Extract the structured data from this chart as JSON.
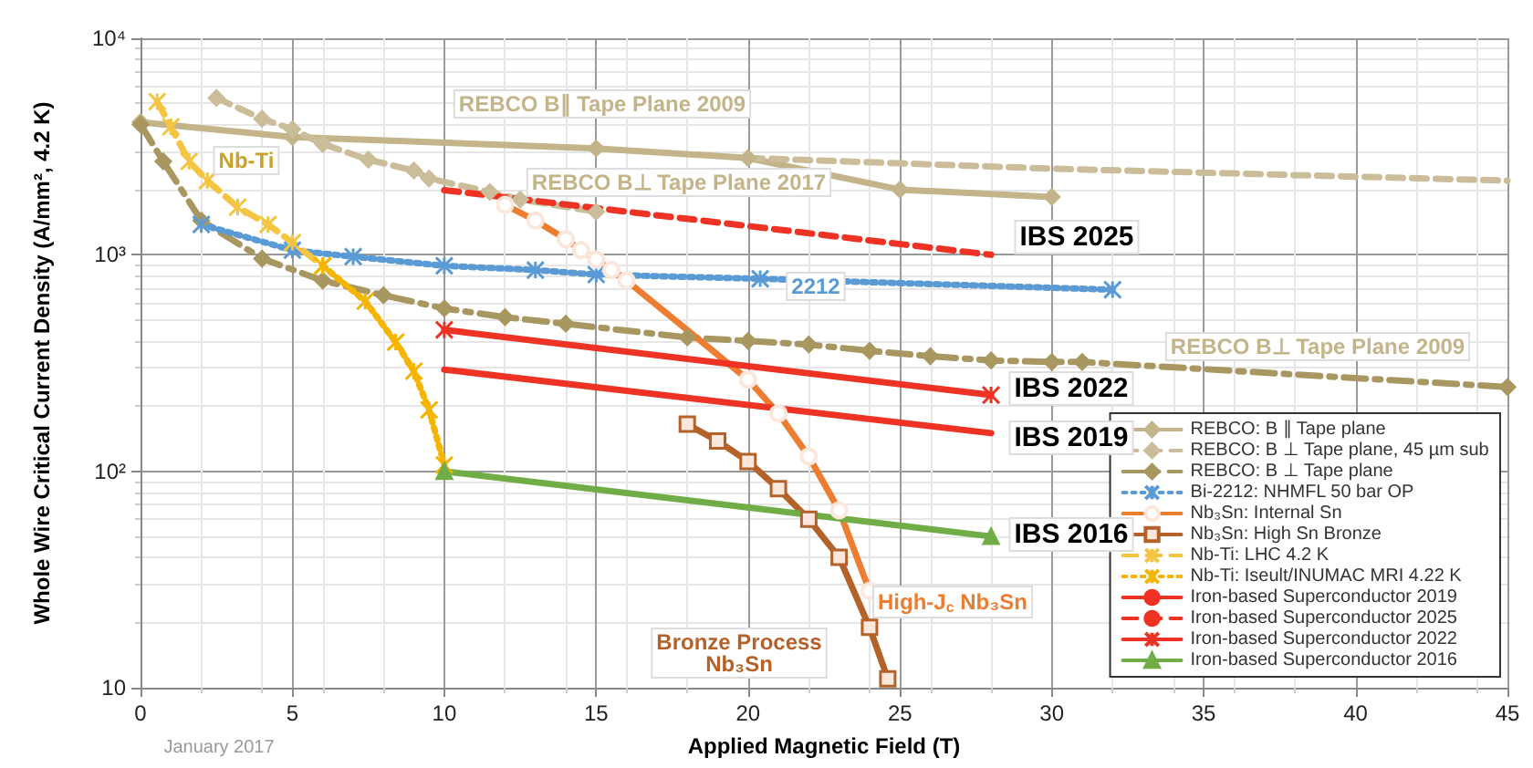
{
  "chart_data": {
    "type": "line",
    "xlabel": "Applied Magnetic Field (T)",
    "ylabel": "Whole Wire Critical Current Density (A/mm², 4.2 K)",
    "xlim": [
      0,
      45
    ],
    "xticks": [
      0,
      5,
      10,
      15,
      20,
      25,
      30,
      35,
      40,
      45
    ],
    "ylim": [
      10,
      10000
    ],
    "yticks": [
      {
        "value": 10,
        "label": "10"
      },
      {
        "value": 100,
        "label": "10²"
      },
      {
        "value": 1000,
        "label": "10³"
      },
      {
        "value": 10000,
        "label": "10⁴"
      }
    ],
    "log": "y",
    "grid": true,
    "legend": "bottom right",
    "series": [
      {
        "name": "REBCO: B ∥ Tape plane",
        "color": "#c4b48a",
        "marker": "diamond",
        "line_style": "solid",
        "x": [
          0,
          5,
          15,
          20,
          25,
          30
        ],
        "values": [
          4100,
          3500,
          3100,
          2800,
          2000,
          1850
        ]
      },
      {
        "name": "REBCO: B ⊥ Tape plane, 45 µm sub",
        "color": "#cbbd99",
        "marker": "diamond",
        "line_style": "dashed",
        "x": [
          2.5,
          4,
          5,
          6,
          7.5,
          9,
          9.5,
          11.5,
          12.5,
          15
        ],
        "values": [
          5300,
          4250,
          3800,
          3250,
          2750,
          2450,
          2250,
          1950,
          1800,
          1580
        ]
      },
      {
        "name": null,
        "color": "#cbbd99",
        "marker": "none",
        "line_style": "dashed",
        "x": [
          20,
          30,
          45
        ],
        "values": [
          2800,
          2500,
          2200
        ]
      },
      {
        "name": "REBCO: B ⊥ Tape plane",
        "color": "#a89760",
        "marker": "diamond",
        "line_style": "dashdot",
        "x": [
          0,
          0.75,
          2,
          4,
          6,
          8,
          10,
          12,
          14,
          18,
          20,
          22,
          24,
          26,
          28,
          30,
          31,
          45
        ],
        "values": [
          4000,
          2700,
          1440,
          960,
          760,
          650,
          565,
          515,
          480,
          415,
          400,
          385,
          360,
          340,
          325,
          320,
          320,
          245
        ]
      },
      {
        "name": "Bi-2212: NHMFL 50 bar OP",
        "color": "#5b9bd5",
        "marker": "cross",
        "line_style": "dotted",
        "x": [
          2,
          5,
          7,
          10,
          13,
          15,
          20.4,
          32
        ],
        "values": [
          1380,
          1050,
          980,
          890,
          850,
          810,
          775,
          690
        ]
      },
      {
        "name": "Nb₃Sn: Internal Sn",
        "color": "#ed7d31",
        "marker": "circle",
        "line_style": "solid",
        "x": [
          12,
          13,
          14,
          14.5,
          15,
          15.5,
          16,
          20,
          21,
          22,
          23,
          24
        ],
        "values": [
          1700,
          1440,
          1180,
          1050,
          950,
          850,
          760,
          265,
          185,
          117,
          66,
          28
        ]
      },
      {
        "name": "Nb₃Sn: High Sn Bronze",
        "color": "#b4622a",
        "marker": "square",
        "line_style": "solid",
        "x": [
          18,
          19,
          20,
          21,
          22,
          23,
          24,
          24.6
        ],
        "values": [
          165,
          138,
          111,
          83,
          60,
          40,
          19,
          11
        ]
      },
      {
        "name": "Nb-Ti: LHC 4.2 K",
        "color": "#f4c542",
        "marker": "cross",
        "line_style": "dashed",
        "x": [
          0.55,
          1,
          1.6,
          2.2,
          3.2,
          4.2,
          5,
          6
        ],
        "values": [
          5100,
          3900,
          2700,
          2200,
          1660,
          1380,
          1140,
          890
        ]
      },
      {
        "name": "Nb-Ti: Iseult/INUMAC MRI 4.22 K",
        "color": "#f4b400",
        "marker": "cross",
        "line_style": "dotted",
        "x": [
          6,
          7.4,
          8.4,
          9,
          9.5,
          10
        ],
        "values": [
          890,
          610,
          395,
          290,
          192,
          107
        ]
      },
      {
        "name": "Iron-based Superconductor 2019",
        "color": "#ee3224",
        "marker": "none",
        "line_style": "solid",
        "x": [
          10,
          28
        ],
        "values": [
          295,
          150
        ]
      },
      {
        "name": "Iron-based Superconductor 2025",
        "color": "#ee3224",
        "marker": "none",
        "line_style": "dashed",
        "x": [
          10,
          28
        ],
        "values": [
          1990,
          1000
        ]
      },
      {
        "name": "Iron-based Superconductor 2022",
        "color": "#ee3224",
        "marker": "cross",
        "line_style": "solid",
        "x": [
          10,
          28
        ],
        "values": [
          450,
          225
        ]
      },
      {
        "name": "Iron-based Superconductor 2016",
        "color": "#70ad47",
        "marker": "triangle",
        "line_style": "solid",
        "x": [
          10,
          28
        ],
        "values": [
          100,
          50
        ]
      }
    ],
    "annotations": [
      "REBCO B∥ Tape Plane 2009",
      "REBCO B⊥ Tape Plane 2017",
      "REBCO B⊥ Tape Plane 2009",
      "2212",
      "Nb-Ti",
      "IBS 2025",
      "IBS 2022",
      "IBS 2019",
      "IBS 2016",
      "High-J$_{c}$ Nb₃Sn",
      "Bronze Process\nNb₃Sn",
      "January 2017"
    ]
  }
}
